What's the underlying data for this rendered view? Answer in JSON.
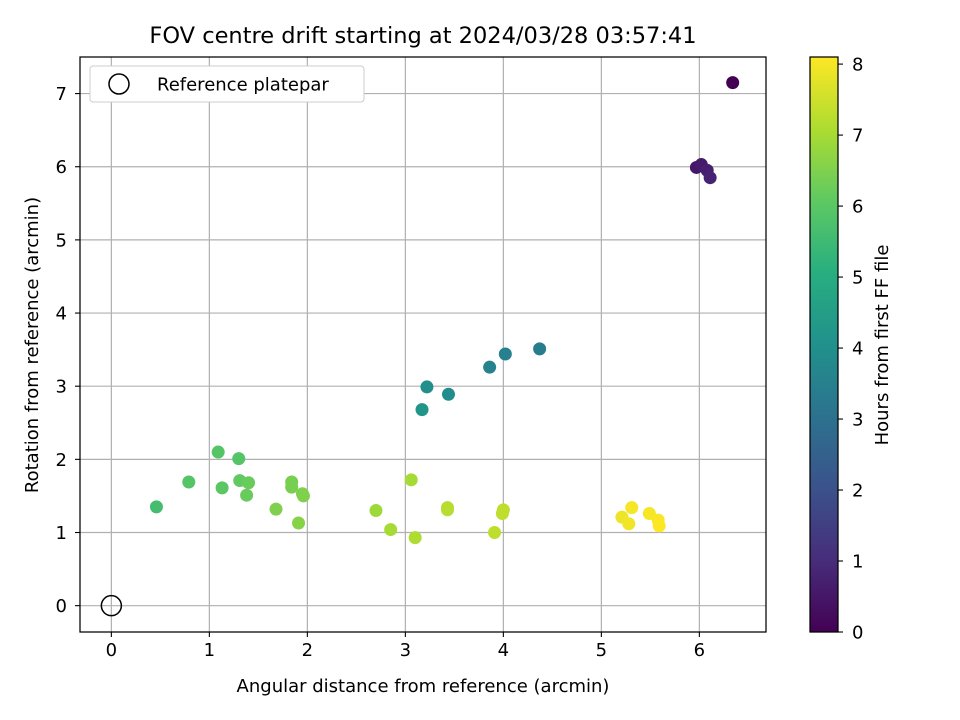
{
  "chart_data": {
    "type": "scatter",
    "title": "FOV centre drift starting at 2024/03/28 03:57:41",
    "xlabel": "Angular distance from reference (arcmin)",
    "ylabel": "Rotation from reference (arcmin)",
    "xlim": [
      -0.32,
      6.68
    ],
    "ylim": [
      -0.36,
      7.5
    ],
    "xticks": [
      0,
      1,
      2,
      3,
      4,
      5,
      6
    ],
    "yticks": [
      0,
      1,
      2,
      3,
      4,
      5,
      6,
      7
    ],
    "grid": true,
    "legend": {
      "placement": "upper-left",
      "entries": [
        "Reference platepar"
      ]
    },
    "reference_point": {
      "x": 0,
      "y": 0,
      "label": "Reference platepar",
      "marker": "open-circle"
    },
    "colorbar": {
      "label": "Hours from first FF file",
      "colormap": "viridis",
      "range": [
        0,
        8.1
      ],
      "ticks": [
        0,
        1,
        2,
        3,
        4,
        5,
        6,
        7,
        8
      ]
    },
    "points": [
      {
        "x": 6.34,
        "y": 7.15,
        "c": 0.0
      },
      {
        "x": 5.97,
        "y": 5.99,
        "c": 0.5
      },
      {
        "x": 6.02,
        "y": 6.03,
        "c": 0.6
      },
      {
        "x": 6.08,
        "y": 5.95,
        "c": 0.7
      },
      {
        "x": 6.11,
        "y": 5.85,
        "c": 0.8
      },
      {
        "x": 4.37,
        "y": 3.51,
        "c": 3.4
      },
      {
        "x": 4.02,
        "y": 3.44,
        "c": 3.5
      },
      {
        "x": 3.86,
        "y": 3.26,
        "c": 3.6
      },
      {
        "x": 3.44,
        "y": 2.89,
        "c": 3.9
      },
      {
        "x": 3.22,
        "y": 2.99,
        "c": 4.0
      },
      {
        "x": 3.17,
        "y": 2.68,
        "c": 4.2
      },
      {
        "x": 0.46,
        "y": 1.35,
        "c": 5.6
      },
      {
        "x": 1.09,
        "y": 2.1,
        "c": 5.9
      },
      {
        "x": 0.79,
        "y": 1.69,
        "c": 5.9
      },
      {
        "x": 1.3,
        "y": 2.01,
        "c": 5.9
      },
      {
        "x": 1.13,
        "y": 1.61,
        "c": 6.0
      },
      {
        "x": 1.31,
        "y": 1.71,
        "c": 6.1
      },
      {
        "x": 1.4,
        "y": 1.68,
        "c": 6.2
      },
      {
        "x": 1.38,
        "y": 1.51,
        "c": 6.2
      },
      {
        "x": 1.84,
        "y": 1.69,
        "c": 6.4
      },
      {
        "x": 1.84,
        "y": 1.62,
        "c": 6.4
      },
      {
        "x": 1.68,
        "y": 1.32,
        "c": 6.5
      },
      {
        "x": 1.95,
        "y": 1.53,
        "c": 6.5
      },
      {
        "x": 1.96,
        "y": 1.5,
        "c": 6.5
      },
      {
        "x": 1.91,
        "y": 1.13,
        "c": 6.6
      },
      {
        "x": 2.7,
        "y": 1.3,
        "c": 6.9
      },
      {
        "x": 2.85,
        "y": 1.04,
        "c": 7.0
      },
      {
        "x": 3.06,
        "y": 1.72,
        "c": 7.0
      },
      {
        "x": 3.1,
        "y": 0.93,
        "c": 7.1
      },
      {
        "x": 3.43,
        "y": 1.34,
        "c": 7.2
      },
      {
        "x": 3.43,
        "y": 1.31,
        "c": 7.2
      },
      {
        "x": 3.91,
        "y": 1.0,
        "c": 7.3
      },
      {
        "x": 3.99,
        "y": 1.26,
        "c": 7.3
      },
      {
        "x": 4.0,
        "y": 1.31,
        "c": 7.3
      },
      {
        "x": 5.21,
        "y": 1.21,
        "c": 7.9
      },
      {
        "x": 5.28,
        "y": 1.12,
        "c": 7.95
      },
      {
        "x": 5.31,
        "y": 1.34,
        "c": 8.0
      },
      {
        "x": 5.49,
        "y": 1.26,
        "c": 8.0
      },
      {
        "x": 5.58,
        "y": 1.17,
        "c": 8.05
      },
      {
        "x": 5.59,
        "y": 1.09,
        "c": 8.1
      }
    ]
  }
}
